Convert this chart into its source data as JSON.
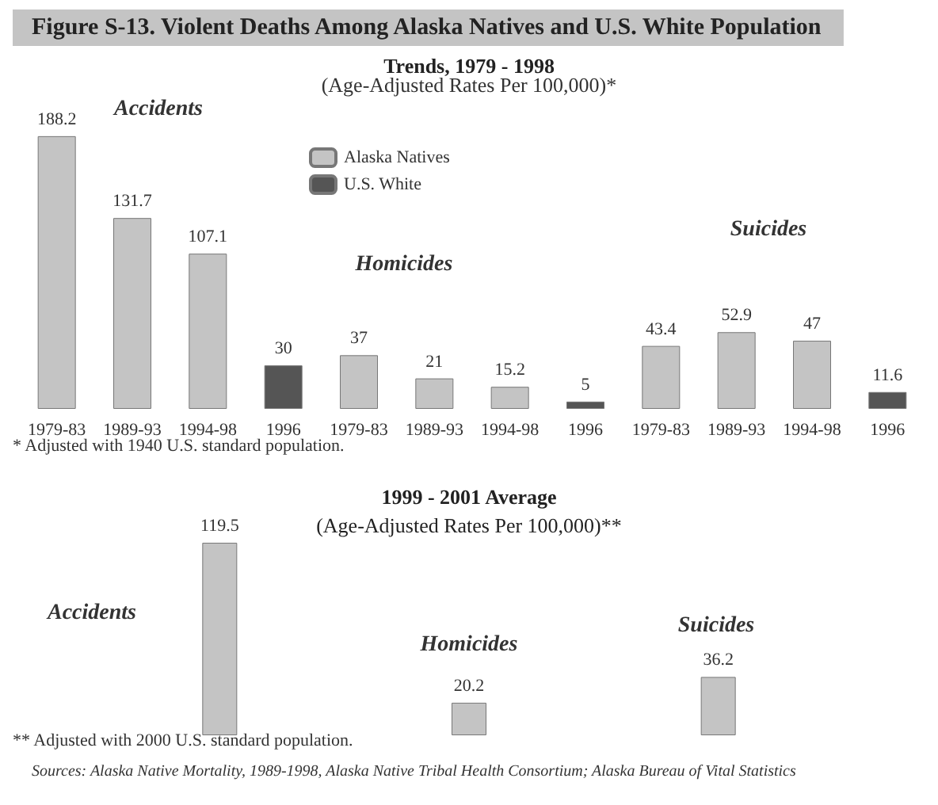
{
  "chart_data": [
    {
      "type": "bar",
      "title": "Figure S-13. Violent Deaths Among Alaska Natives and U.S. White Population",
      "subtitle": "Trends, 1979 - 1998",
      "categories": [
        "1979-83",
        "1989-93",
        "1994-98",
        "1996",
        "1979-83",
        "1989-93",
        "1994-98",
        "1996",
        "1979-83",
        "1989-93",
        "1994-98",
        "1996"
      ],
      "series": [
        {
          "name": "Alaska Natives",
          "color": "#c4c4c4",
          "values": [
            188.2,
            131.7,
            107.1,
            null,
            37,
            21,
            15.2,
            null,
            43.4,
            52.9,
            47,
            null
          ]
        },
        {
          "name": "U.S. White",
          "color": "#555555",
          "values": [
            null,
            null,
            null,
            30,
            null,
            null,
            null,
            5,
            null,
            null,
            null,
            11.6
          ]
        }
      ],
      "stacked": true,
      "data_labels": true,
      "legend": "top left",
      "annotations": [
        "(Age-Adjusted Rates Per 100,000)*",
        "Accidents",
        "Homicides",
        "Suicides",
        "* Adjusted with 1940 U.S. standard population."
      ]
    },
    {
      "type": "bar",
      "title": "1999 - 2001 Average",
      "subtitle": "(Age-Adjusted Rates Per 100,000)**",
      "categories": [
        null,
        null,
        null
      ],
      "values": [
        119.5,
        20.2,
        36.2
      ],
      "color": "#c4c4c4",
      "data_labels": true,
      "annotations": [
        "Accidents",
        "Homicides",
        "Suicides",
        "** Adjusted with 2000 U.S. standard population.",
        "Sources: Alaska Native Mortality, 1989-1998, Alaska Native Tribal Health Consortium; Alaska Bureau of Vital Statistics"
      ]
    }
  ]
}
